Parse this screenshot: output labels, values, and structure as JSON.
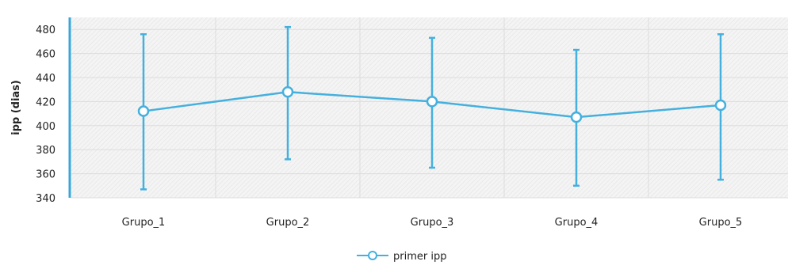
{
  "chart_data": {
    "type": "line",
    "categories": [
      "Grupo_1",
      "Grupo_2",
      "Grupo_3",
      "Grupo_4",
      "Grupo_5"
    ],
    "series": [
      {
        "name": "primer ipp",
        "values": [
          412,
          428,
          420,
          407,
          417
        ],
        "error_low": [
          347,
          372,
          365,
          350,
          355
        ],
        "error_high": [
          476,
          482,
          473,
          463,
          476
        ]
      }
    ],
    "ylabel": "ipp (dias)",
    "xlabel": "",
    "ylim": [
      340,
      490
    ],
    "yticks": [
      340,
      360,
      380,
      400,
      420,
      440,
      460,
      480
    ],
    "grid": true,
    "legend_position": "bottom-center",
    "colors": {
      "series": "#45b0de",
      "grid": "#dcdcdc",
      "axis": "#3aa6d8"
    }
  }
}
